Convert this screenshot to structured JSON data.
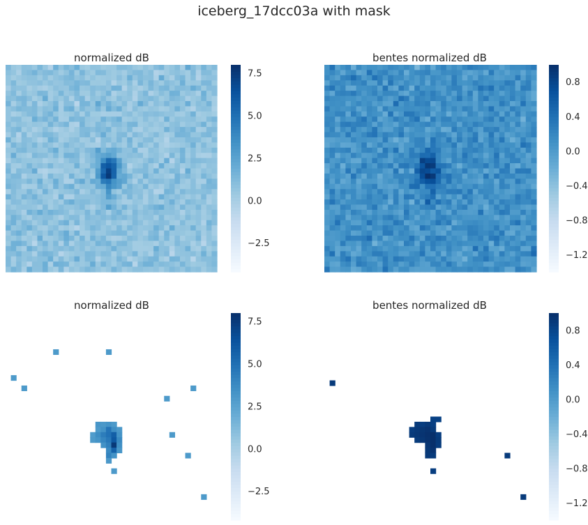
{
  "suptitle": "iceberg_17dcc03a with mask",
  "colormap": {
    "name": "Blues",
    "stops": [
      "#f7fbff",
      "#deebf7",
      "#c6dbef",
      "#9ecae1",
      "#6baed6",
      "#4292c6",
      "#2171b5",
      "#08519c",
      "#08306b"
    ]
  },
  "chart_data": [
    {
      "type": "heatmap",
      "title": "normalized dB",
      "grid": false,
      "resolution": [
        40,
        40
      ],
      "colorbar": {
        "vmin": -4.2,
        "vmax": 8.0,
        "ticks": [
          -2.5,
          0.0,
          2.5,
          5.0,
          7.5
        ],
        "tick_labels": [
          "−2.5",
          "0.0",
          "2.5",
          "5.0",
          "7.5"
        ]
      },
      "field": {
        "background_mean": 0.8,
        "noise": 1.4,
        "target_center_cell": [
          20,
          19
        ],
        "target_peak": 7.6
      },
      "masked": false
    },
    {
      "type": "heatmap",
      "title": "bentes normalized dB",
      "grid": false,
      "resolution": [
        40,
        40
      ],
      "colorbar": {
        "vmin": -1.4,
        "vmax": 1.0,
        "ticks": [
          -1.2,
          -0.8,
          -0.4,
          0.0,
          0.4,
          0.8
        ],
        "tick_labels": [
          "−1.2",
          "−0.8",
          "−0.4",
          "0.0",
          "0.4",
          "0.8"
        ]
      },
      "field": {
        "background_mean": 0.1,
        "noise": 0.35,
        "target_center_cell": [
          20,
          19
        ],
        "target_peak": 1.0
      },
      "masked": false
    },
    {
      "type": "heatmap",
      "title": "normalized dB",
      "grid": false,
      "resolution": [
        40,
        40
      ],
      "colorbar": {
        "vmin": -4.2,
        "vmax": 8.0,
        "ticks": [
          -2.5,
          0.0,
          2.5,
          5.0,
          7.5
        ],
        "tick_labels": [
          "−2.5",
          "0.0",
          "2.5",
          "5.0",
          "7.5"
        ]
      },
      "masked": true,
      "visible_cells": [
        {
          "row": 21,
          "col": 17,
          "value": 3.2
        },
        {
          "row": 21,
          "col": 18,
          "value": 3.1
        },
        {
          "row": 21,
          "col": 19,
          "value": 3.3
        },
        {
          "row": 21,
          "col": 20,
          "value": 3.0
        },
        {
          "row": 22,
          "col": 17,
          "value": 3.0
        },
        {
          "row": 22,
          "col": 18,
          "value": 3.4
        },
        {
          "row": 22,
          "col": 19,
          "value": 4.8
        },
        {
          "row": 22,
          "col": 20,
          "value": 3.6
        },
        {
          "row": 22,
          "col": 21,
          "value": 3.1
        },
        {
          "row": 23,
          "col": 16,
          "value": 2.9
        },
        {
          "row": 23,
          "col": 17,
          "value": 3.6
        },
        {
          "row": 23,
          "col": 18,
          "value": 4.4
        },
        {
          "row": 23,
          "col": 19,
          "value": 4.9
        },
        {
          "row": 23,
          "col": 20,
          "value": 5.8
        },
        {
          "row": 23,
          "col": 21,
          "value": 3.3
        },
        {
          "row": 24,
          "col": 16,
          "value": 3.0
        },
        {
          "row": 24,
          "col": 17,
          "value": 3.3
        },
        {
          "row": 24,
          "col": 18,
          "value": 4.0
        },
        {
          "row": 24,
          "col": 19,
          "value": 4.6
        },
        {
          "row": 24,
          "col": 20,
          "value": 6.1
        },
        {
          "row": 24,
          "col": 21,
          "value": 3.8
        },
        {
          "row": 25,
          "col": 18,
          "value": 3.4
        },
        {
          "row": 25,
          "col": 19,
          "value": 4.2
        },
        {
          "row": 25,
          "col": 20,
          "value": 7.6
        },
        {
          "row": 25,
          "col": 21,
          "value": 3.5
        },
        {
          "row": 26,
          "col": 19,
          "value": 3.8
        },
        {
          "row": 26,
          "col": 20,
          "value": 5.6
        },
        {
          "row": 26,
          "col": 21,
          "value": 3.2
        },
        {
          "row": 27,
          "col": 19,
          "value": 4.1
        },
        {
          "row": 27,
          "col": 20,
          "value": 3.3
        },
        {
          "row": 28,
          "col": 19,
          "value": 3.1
        },
        {
          "row": 30,
          "col": 20,
          "value": 3.0
        },
        {
          "row": 7,
          "col": 9,
          "value": 3.0
        },
        {
          "row": 7,
          "col": 19,
          "value": 3.0
        },
        {
          "row": 12,
          "col": 1,
          "value": 3.0
        },
        {
          "row": 14,
          "col": 3,
          "value": 3.0
        },
        {
          "row": 16,
          "col": 30,
          "value": 3.0
        },
        {
          "row": 14,
          "col": 35,
          "value": 3.0
        },
        {
          "row": 23,
          "col": 31,
          "value": 3.0
        },
        {
          "row": 27,
          "col": 34,
          "value": 3.0
        },
        {
          "row": 35,
          "col": 37,
          "value": 3.0
        }
      ]
    },
    {
      "type": "heatmap",
      "title": "bentes normalized dB",
      "grid": false,
      "resolution": [
        40,
        40
      ],
      "colorbar": {
        "vmin": -1.4,
        "vmax": 1.0,
        "ticks": [
          -1.2,
          -0.8,
          -0.4,
          0.0,
          0.4,
          0.8
        ],
        "tick_labels": [
          "−1.2",
          "−0.8",
          "−0.4",
          "0.0",
          "0.4",
          "0.8"
        ]
      },
      "masked": true,
      "visible_cells": [
        {
          "row": 20,
          "col": 20,
          "value": 0.85
        },
        {
          "row": 20,
          "col": 21,
          "value": 0.85
        },
        {
          "row": 21,
          "col": 17,
          "value": 0.9
        },
        {
          "row": 21,
          "col": 18,
          "value": 0.88
        },
        {
          "row": 21,
          "col": 19,
          "value": 0.92
        },
        {
          "row": 21,
          "col": 20,
          "value": 0.86
        },
        {
          "row": 22,
          "col": 16,
          "value": 0.88
        },
        {
          "row": 22,
          "col": 17,
          "value": 0.92
        },
        {
          "row": 22,
          "col": 18,
          "value": 0.95
        },
        {
          "row": 22,
          "col": 19,
          "value": 0.97
        },
        {
          "row": 22,
          "col": 20,
          "value": 0.9
        },
        {
          "row": 23,
          "col": 16,
          "value": 0.9
        },
        {
          "row": 23,
          "col": 17,
          "value": 0.93
        },
        {
          "row": 23,
          "col": 18,
          "value": 0.96
        },
        {
          "row": 23,
          "col": 19,
          "value": 0.99
        },
        {
          "row": 23,
          "col": 20,
          "value": 1.0
        },
        {
          "row": 23,
          "col": 21,
          "value": 0.88
        },
        {
          "row": 24,
          "col": 17,
          "value": 0.9
        },
        {
          "row": 24,
          "col": 18,
          "value": 0.94
        },
        {
          "row": 24,
          "col": 19,
          "value": 0.98
        },
        {
          "row": 24,
          "col": 20,
          "value": 1.0
        },
        {
          "row": 24,
          "col": 21,
          "value": 0.9
        },
        {
          "row": 25,
          "col": 19,
          "value": 0.95
        },
        {
          "row": 25,
          "col": 20,
          "value": 1.0
        },
        {
          "row": 25,
          "col": 21,
          "value": 0.89
        },
        {
          "row": 26,
          "col": 19,
          "value": 0.93
        },
        {
          "row": 26,
          "col": 20,
          "value": 0.97
        },
        {
          "row": 27,
          "col": 19,
          "value": 0.92
        },
        {
          "row": 27,
          "col": 20,
          "value": 0.9
        },
        {
          "row": 30,
          "col": 20,
          "value": 0.87
        },
        {
          "row": 13,
          "col": 1,
          "value": 0.9
        },
        {
          "row": 27,
          "col": 34,
          "value": 0.9
        },
        {
          "row": 35,
          "col": 37,
          "value": 0.9
        }
      ]
    }
  ]
}
